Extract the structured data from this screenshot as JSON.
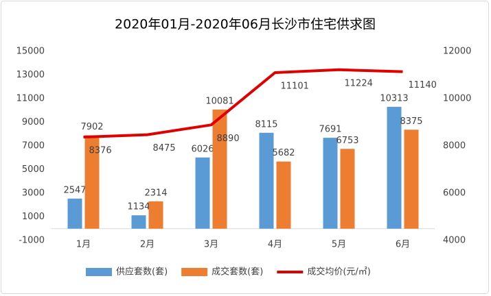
{
  "chart_data": {
    "type": "bar",
    "title": "2020年01月-2020年06月长沙市住宅供求图",
    "categories": [
      "1月",
      "2月",
      "3月",
      "4月",
      "5月",
      "6月"
    ],
    "series": [
      {
        "name": "供应套数(套)",
        "color": "#5b9bd5",
        "values": [
          2547,
          1134,
          6026,
          8115,
          7691,
          10313
        ]
      },
      {
        "name": "成交套数(套)",
        "color": "#ed7d31",
        "values": [
          7902,
          2314,
          10081,
          5682,
          6753,
          8375
        ]
      },
      {
        "name": "成交均价(元/㎡)",
        "color": "#e00000",
        "type": "line",
        "axis": "y2",
        "values": [
          8376,
          8475,
          8890,
          11101,
          11224,
          11140
        ]
      }
    ],
    "ylim": [
      -1000,
      15000
    ],
    "yticks": [
      -1000,
      1000,
      3000,
      5000,
      7000,
      9000,
      11000,
      13000,
      15000
    ],
    "y2lim": [
      4000,
      12000
    ],
    "y2ticks": [
      4000,
      6000,
      8000,
      10000,
      12000
    ],
    "grid": false,
    "legend": "bottom"
  }
}
